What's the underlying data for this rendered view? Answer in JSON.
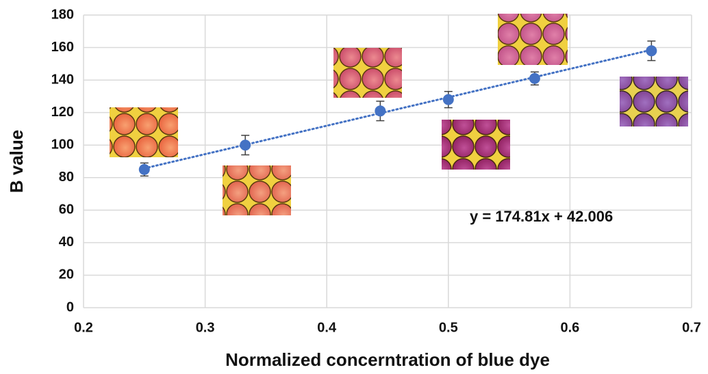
{
  "chart_data": {
    "type": "scatter",
    "x": [
      0.25,
      0.333,
      0.444,
      0.5,
      0.571,
      0.667
    ],
    "values": [
      85,
      100,
      121,
      128,
      141,
      158
    ],
    "errors": [
      4,
      6,
      6,
      5,
      4,
      6
    ],
    "color": "#4472c4",
    "trendline": {
      "x": [
        0.25,
        0.667
      ],
      "values": [
        85.7,
        158.6
      ]
    },
    "annotation": "y = 174.81x + 42.006",
    "xlabel": "Normalized concerntration of blue dye",
    "ylabel": "B value",
    "xlim": [
      0.2,
      0.7
    ],
    "xticks": [
      0.2,
      0.3,
      0.4,
      0.5,
      0.6,
      0.7
    ],
    "ylim": [
      0,
      180
    ],
    "yticks": [
      0,
      20,
      40,
      60,
      80,
      100,
      120,
      140,
      160,
      180
    ],
    "grid": true
  }
}
